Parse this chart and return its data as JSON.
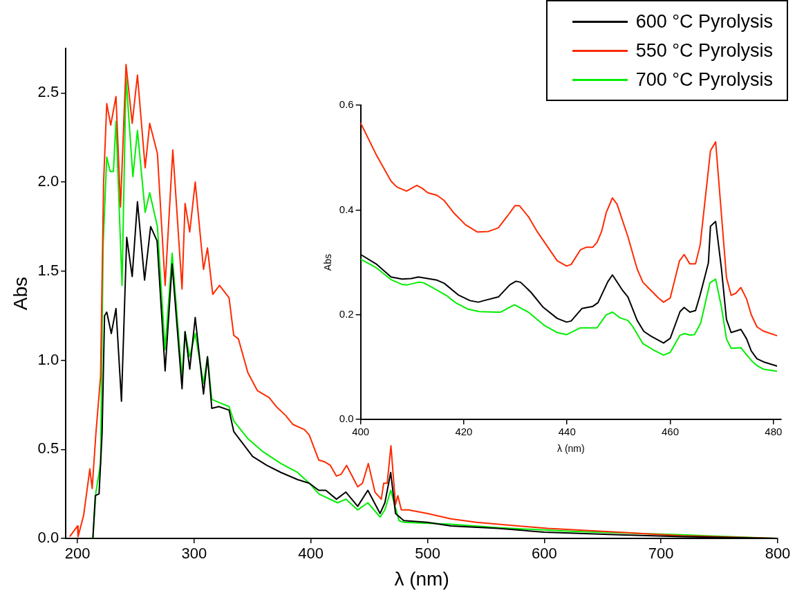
{
  "chart_data": [
    {
      "type": "line",
      "xlabel": "λ (nm)",
      "ylabel": "Abs",
      "xlim": [
        190,
        800
      ],
      "ylim": [
        0,
        2.75
      ],
      "xticks": [
        200,
        300,
        400,
        500,
        600,
        700,
        800
      ],
      "yticks": [
        {
          "value": 0,
          "label": "0.0"
        },
        {
          "value": 0.5,
          "label": "0.5"
        },
        {
          "value": 1,
          "label": "1.0"
        },
        {
          "value": 1.5,
          "label": "1.5"
        },
        {
          "value": 2,
          "label": "2.0"
        },
        {
          "value": 2.5,
          "label": "2.5"
        }
      ],
      "grid": false,
      "marker": "none",
      "legend": "top right",
      "series": [
        {
          "name": "600 °C Pyrolysis",
          "color": "#000000",
          "x": [
            213.2,
            215.3,
            218.5,
            221.1,
            223.2,
            225.1,
            229,
            233,
            237.7,
            242.2,
            246.9,
            251.4,
            257.5,
            262.7,
            268.2,
            275.1,
            281.1,
            289.6,
            292.2,
            296.2,
            300.9,
            308,
            311.4,
            315.1,
            321.1,
            329.9,
            333.9,
            342,
            350.1,
            362.2,
            374.4,
            388.6,
            398.6,
            406.7,
            412.8,
            421.9,
            430,
            440.1,
            448.8,
            459.3,
            463.4,
            468.4,
            472.5,
            479.6,
            499.8,
            520,
            560.4,
            600,
            663.6,
            718,
            799
          ],
          "values": [
            0,
            0.24,
            0.25,
            0.59,
            1.25,
            1.27,
            1.15,
            1.29,
            0.77,
            1.69,
            1.47,
            1.89,
            1.45,
            1.75,
            1.67,
            0.94,
            1.54,
            0.84,
            1.16,
            0.95,
            1.24,
            0.81,
            1.02,
            0.73,
            0.74,
            0.72,
            0.6,
            0.53,
            0.46,
            0.41,
            0.37,
            0.33,
            0.31,
            0.27,
            0.27,
            0.22,
            0.26,
            0.18,
            0.27,
            0.14,
            0.2,
            0.37,
            0.14,
            0.1,
            0.09,
            0.07,
            0.056,
            0.035,
            0.02,
            0.01,
            0
          ]
        },
        {
          "name": "550 °C Pyrolysis",
          "color": "#ff2a00",
          "x": [
            193.4,
            200,
            200.5,
            205.3,
            210.6,
            212.6,
            215.8,
            219.8,
            222.4,
            225.1,
            228.5,
            233,
            236.9,
            241.6,
            246.9,
            251.4,
            258,
            261.9,
            268.5,
            275.1,
            281.7,
            289.6,
            292.2,
            296.2,
            300.9,
            308,
            311.4,
            315.9,
            321.7,
            329.9,
            333.9,
            337.9,
            346,
            354.1,
            364.3,
            370.3,
            378.4,
            384.5,
            394.6,
            398.6,
            406.7,
            411.8,
            416.7,
            421.9,
            425.9,
            430.6,
            440.1,
            444.2,
            449.2,
            454.9,
            460.3,
            462.4,
            465.4,
            468.6,
            472.5,
            474.5,
            477.5,
            483.6,
            499.8,
            520,
            542,
            602.9,
            663.6,
            718,
            799
          ],
          "values": [
            0.01,
            0.07,
            0.01,
            0.13,
            0.39,
            0.28,
            0.59,
            0.91,
            2,
            2.44,
            2.32,
            2.48,
            1.86,
            2.66,
            2.33,
            2.6,
            2.08,
            2.33,
            2.16,
            1.42,
            2.18,
            1.4,
            1.88,
            1.72,
            2,
            1.51,
            1.63,
            1.37,
            1.42,
            1.35,
            1.14,
            1.12,
            0.93,
            0.83,
            0.79,
            0.74,
            0.69,
            0.64,
            0.61,
            0.58,
            0.44,
            0.43,
            0.41,
            0.35,
            0.36,
            0.41,
            0.29,
            0.31,
            0.42,
            0.26,
            0.22,
            0.31,
            0.31,
            0.52,
            0.19,
            0.24,
            0.16,
            0.16,
            0.14,
            0.11,
            0.09,
            0.056,
            0.035,
            0.015,
            0
          ]
        },
        {
          "name": "700 °C Pyrolysis",
          "color": "#00ee00",
          "x": [
            213.2,
            215.8,
            219.8,
            222,
            225.1,
            228,
            230.8,
            233,
            235.1,
            238.2,
            241.6,
            247.5,
            251.4,
            258,
            261.9,
            268.5,
            275.1,
            281.1,
            289.6,
            292.2,
            296.2,
            300.9,
            308,
            311.4,
            315.1,
            322.4,
            329.9,
            333.9,
            346,
            358.2,
            374.4,
            388.6,
            398.6,
            406.7,
            422.9,
            430,
            440.1,
            448.8,
            459.3,
            463.4,
            468.4,
            475.5,
            479.6,
            520,
            560.4,
            623,
            718,
            799
          ],
          "values": [
            0,
            0.26,
            0.42,
            1.65,
            2.14,
            2.06,
            2.06,
            2.34,
            1.97,
            1.42,
            2.59,
            2.03,
            2.29,
            1.83,
            1.94,
            1.75,
            1.06,
            1.6,
            0.9,
            1.16,
            1.02,
            1.15,
            0.87,
            1.02,
            0.78,
            0.76,
            0.74,
            0.66,
            0.56,
            0.49,
            0.42,
            0.37,
            0.31,
            0.25,
            0.2,
            0.22,
            0.16,
            0.2,
            0.12,
            0.16,
            0.27,
            0.1,
            0.09,
            0.08,
            0.06,
            0.04,
            0.02,
            0
          ]
        }
      ]
    },
    {
      "type": "line",
      "xlabel": "λ (nm)",
      "ylabel": "Abs",
      "xlim": [
        400,
        481.5
      ],
      "ylim": [
        0,
        0.6
      ],
      "xticks": [
        400,
        420,
        440,
        460,
        480
      ],
      "yticks": [
        {
          "value": 0,
          "label": "0.0"
        },
        {
          "value": 0.2,
          "label": "0.2"
        },
        {
          "value": 0.4,
          "label": "0.4"
        },
        {
          "value": 0.6,
          "label": "0.6"
        }
      ],
      "grid": false,
      "marker": "none",
      "series": [
        {
          "color": "#000000",
          "x": [
            400,
            403,
            405.9,
            408,
            409.8,
            411.2,
            413,
            414.8,
            416.2,
            418.9,
            421.2,
            422.8,
            423.9,
            426.7,
            428.9,
            430.1,
            431,
            433,
            435.3,
            438.1,
            439.9,
            440.8,
            442.9,
            445,
            446,
            447.9,
            448.8,
            450.8,
            451.8,
            453.6,
            454.9,
            456.3,
            458.7,
            460,
            461.9,
            462.7,
            463.8,
            464.9,
            465.8,
            467.4,
            467.8,
            468.8,
            469.9,
            470.9,
            471.8,
            473.7,
            474.8,
            475.7,
            476.8,
            478.1,
            480.7
          ],
          "values": [
            0.315,
            0.297,
            0.272,
            0.268,
            0.269,
            0.272,
            0.269,
            0.266,
            0.26,
            0.238,
            0.227,
            0.224,
            0.227,
            0.234,
            0.257,
            0.264,
            0.262,
            0.243,
            0.215,
            0.193,
            0.186,
            0.188,
            0.212,
            0.216,
            0.223,
            0.263,
            0.276,
            0.246,
            0.234,
            0.189,
            0.168,
            0.159,
            0.146,
            0.155,
            0.206,
            0.214,
            0.205,
            0.208,
            0.238,
            0.299,
            0.369,
            0.378,
            0.29,
            0.191,
            0.166,
            0.172,
            0.154,
            0.131,
            0.116,
            0.11,
            0.102
          ]
        },
        {
          "color": "#ff2a00",
          "x": [
            400,
            403,
            405.9,
            407,
            408.9,
            410.9,
            412,
            413,
            414.8,
            416.2,
            418,
            420.3,
            422.6,
            424.8,
            426.7,
            428.5,
            429.9,
            430.8,
            432.6,
            434.2,
            438.1,
            439.9,
            440.8,
            442.6,
            443.8,
            445,
            445.8,
            446.7,
            447.6,
            448.8,
            449.7,
            451.8,
            453.6,
            454.7,
            456.3,
            457.7,
            458.7,
            460,
            461.8,
            462.7,
            463.8,
            464.9,
            465.8,
            467.8,
            468.8,
            470.9,
            471.8,
            472.7,
            473.7,
            474.8,
            475.7,
            476.8,
            478,
            480.7
          ],
          "values": [
            0.566,
            0.506,
            0.455,
            0.444,
            0.436,
            0.447,
            0.441,
            0.433,
            0.428,
            0.418,
            0.395,
            0.372,
            0.358,
            0.359,
            0.366,
            0.389,
            0.408,
            0.408,
            0.386,
            0.359,
            0.303,
            0.293,
            0.296,
            0.324,
            0.329,
            0.329,
            0.338,
            0.359,
            0.395,
            0.423,
            0.411,
            0.349,
            0.287,
            0.262,
            0.246,
            0.232,
            0.224,
            0.232,
            0.303,
            0.315,
            0.297,
            0.297,
            0.333,
            0.513,
            0.53,
            0.271,
            0.237,
            0.241,
            0.252,
            0.23,
            0.2,
            0.177,
            0.169,
            0.16
          ]
        },
        {
          "color": "#00ee00",
          "x": [
            400,
            403,
            405.9,
            408,
            409.1,
            411.2,
            412.2,
            413.9,
            416.6,
            418.4,
            420.7,
            423,
            426.2,
            427.1,
            429.8,
            432.5,
            435.7,
            438.1,
            439.9,
            442.6,
            445.8,
            447.6,
            448.8,
            450.3,
            451.8,
            452.7,
            454.7,
            456.7,
            458.7,
            460,
            461.9,
            462.8,
            463.8,
            464.7,
            465.9,
            467.7,
            468.8,
            469.9,
            470.9,
            471.8,
            473.7,
            474.6,
            475.7,
            476.8,
            478.1,
            480.7
          ],
          "values": [
            0.306,
            0.29,
            0.267,
            0.258,
            0.257,
            0.262,
            0.261,
            0.252,
            0.237,
            0.223,
            0.211,
            0.206,
            0.205,
            0.205,
            0.219,
            0.205,
            0.179,
            0.166,
            0.162,
            0.175,
            0.175,
            0.2,
            0.205,
            0.194,
            0.189,
            0.178,
            0.145,
            0.133,
            0.123,
            0.128,
            0.161,
            0.164,
            0.161,
            0.162,
            0.184,
            0.261,
            0.268,
            0.216,
            0.154,
            0.136,
            0.137,
            0.126,
            0.113,
            0.103,
            0.096,
            0.092
          ]
        }
      ]
    }
  ]
}
